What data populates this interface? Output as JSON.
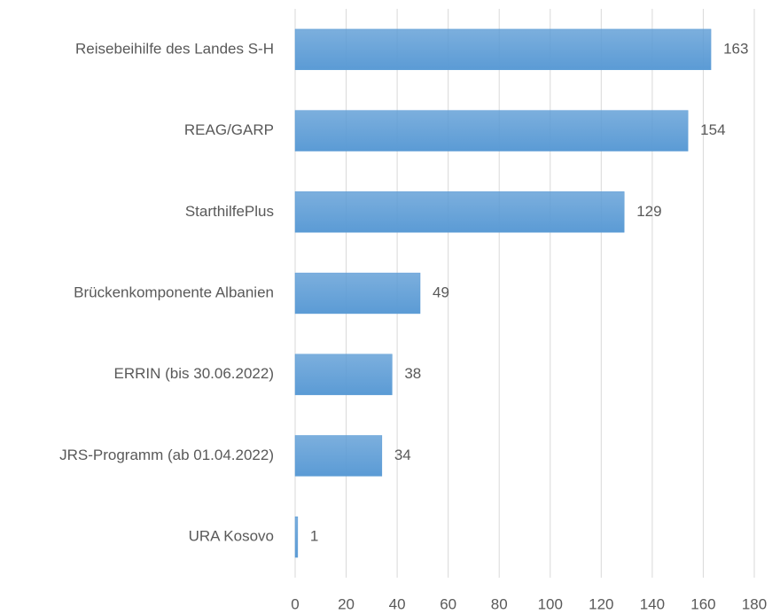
{
  "chart_data": {
    "type": "barh",
    "categories": [
      "Reisebeihilfe des Landes S-H",
      "REAG/GARP",
      "StarthilfePlus",
      "Brückenkomponente Albanien",
      "ERRIN (bis 30.06.2022)",
      "JRS-Programm (ab 01.04.2022)",
      "URA Kosovo"
    ],
    "values": [
      163,
      154,
      129,
      49,
      38,
      34,
      1
    ],
    "color": "#5b9bd5",
    "xlim": [
      0,
      180
    ],
    "xticks": [
      0,
      20,
      40,
      60,
      80,
      100,
      120,
      140,
      160,
      180
    ],
    "grid": true
  }
}
